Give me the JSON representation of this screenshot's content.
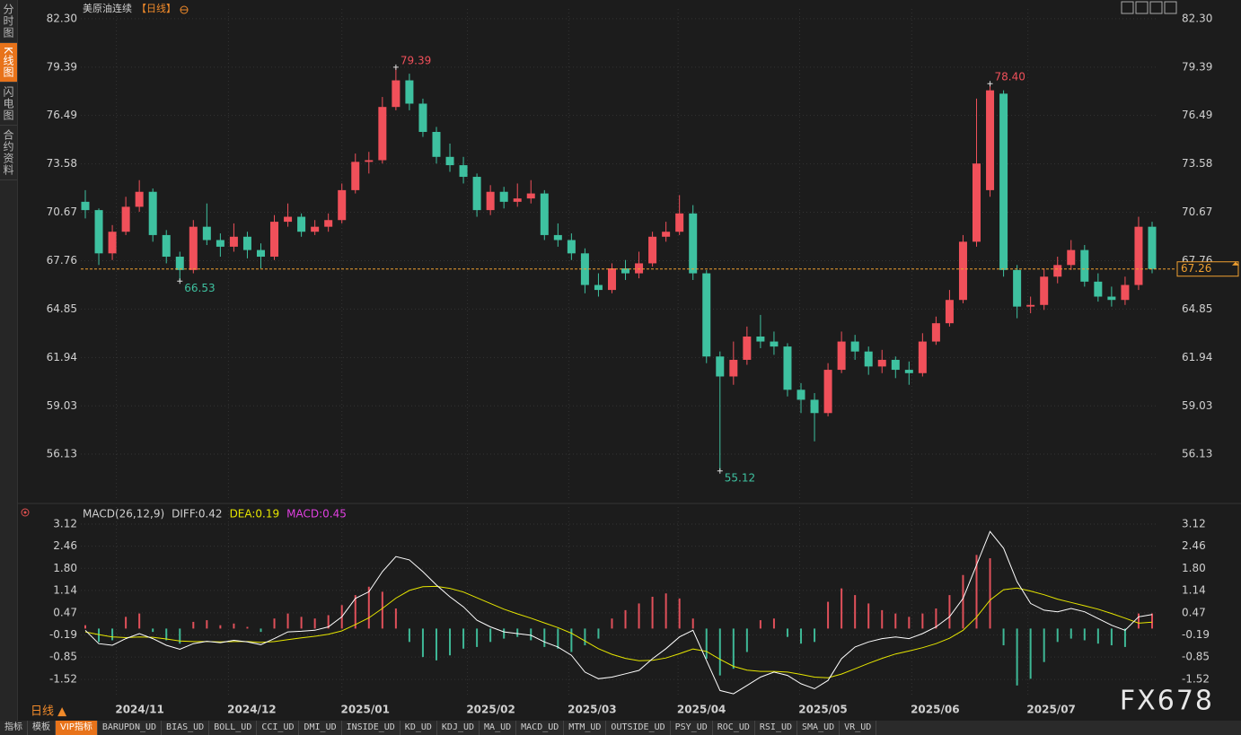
{
  "sidebar_tabs": [
    "分时图",
    "K线图",
    "闪电图",
    "合约资料"
  ],
  "period_switch": "日线 ▲",
  "toolbar": [
    "指标",
    "模板",
    "VIP指标",
    "BARUPDN_UD",
    "BIAS_UD",
    "BOLL_UD",
    "CCI_UD",
    "DMI_UD",
    "INSIDE_UD",
    "KD_UD",
    "KDJ_UD",
    "MA_UD",
    "MACD_UD",
    "MTM_UD",
    "OUTSIDE_UD",
    "PSY_UD",
    "ROC_UD",
    "RSI_UD",
    "SMA_UD",
    "VR_UD"
  ],
  "watermark": "FX678",
  "chart_data": [
    {
      "type": "candlestick",
      "title": "美原油连续",
      "period": "【日线】",
      "up_color": "#f0505a",
      "down_color": "#3ec1a0",
      "last_price_color": "#f0a030",
      "grid": true,
      "ylim": [
        53.49,
        82.89
      ],
      "yticks": [
        {
          "value": 82.3,
          "label": "82.30"
        },
        79.39,
        76.49,
        73.58,
        70.67,
        67.76,
        64.85,
        61.94,
        59.03,
        56.13
      ],
      "open": [
        71.3,
        70.8,
        68.2,
        69.5,
        71.0,
        71.9,
        69.3,
        68.0,
        67.2,
        69.8,
        69.0,
        68.6,
        69.2,
        68.4,
        68.0,
        70.1,
        70.4,
        69.5,
        69.8,
        70.2,
        72.0,
        73.7,
        73.8,
        77.0,
        78.6,
        77.2,
        75.5,
        74.0,
        73.5,
        72.8,
        70.8,
        71.9,
        71.3,
        71.5,
        71.8,
        69.3,
        69.0,
        68.2,
        66.3,
        66.0,
        67.3,
        67.0,
        67.6,
        69.2,
        69.5,
        70.6,
        67.0,
        62.0,
        60.8,
        61.8,
        63.2,
        62.9,
        62.6,
        60.0,
        59.4,
        58.6,
        61.2,
        62.9,
        62.3,
        61.4,
        61.8,
        61.2,
        61.0,
        62.9,
        64.0,
        65.4,
        68.9,
        72.0,
        77.8,
        67.2,
        65.0,
        65.1,
        66.8,
        67.5,
        68.4,
        66.5,
        65.6,
        65.4,
        66.3,
        69.8
      ],
      "high": [
        72.0,
        70.9,
        69.9,
        71.6,
        72.6,
        72.1,
        69.6,
        68.3,
        70.2,
        71.2,
        69.4,
        70.0,
        69.5,
        68.8,
        70.5,
        71.2,
        70.6,
        70.2,
        70.6,
        72.4,
        74.2,
        74.3,
        77.6,
        79.39,
        79.0,
        77.5,
        75.8,
        74.8,
        74.0,
        73.0,
        72.3,
        72.2,
        72.4,
        72.6,
        72.0,
        70.0,
        69.4,
        68.5,
        67.0,
        67.6,
        67.8,
        68.3,
        69.5,
        70.1,
        71.7,
        71.1,
        67.2,
        62.3,
        62.9,
        63.8,
        64.5,
        63.5,
        62.8,
        60.4,
        59.8,
        61.6,
        63.5,
        63.3,
        62.6,
        62.4,
        62.0,
        61.7,
        63.4,
        64.4,
        66.0,
        69.3,
        77.5,
        78.4,
        78.0,
        67.5,
        65.6,
        67.3,
        68.0,
        69.0,
        68.7,
        67.0,
        66.2,
        66.8,
        70.4,
        70.1
      ],
      "low": [
        70.3,
        67.5,
        67.8,
        69.3,
        70.7,
        68.9,
        67.6,
        66.53,
        67.0,
        68.7,
        68.0,
        68.3,
        67.9,
        67.3,
        67.8,
        69.8,
        69.2,
        69.3,
        69.5,
        70.0,
        71.8,
        73.0,
        73.6,
        76.8,
        76.8,
        75.2,
        73.6,
        73.1,
        72.4,
        70.4,
        70.5,
        70.9,
        71.0,
        71.2,
        69.0,
        68.6,
        67.8,
        65.8,
        65.6,
        65.8,
        66.6,
        66.7,
        67.4,
        68.9,
        69.3,
        66.6,
        61.6,
        55.12,
        60.3,
        61.5,
        62.5,
        62.1,
        59.6,
        58.6,
        56.9,
        58.4,
        61.0,
        61.8,
        60.9,
        61.0,
        60.7,
        60.3,
        60.8,
        62.7,
        63.8,
        65.2,
        68.6,
        71.6,
        66.8,
        64.3,
        64.6,
        64.8,
        66.4,
        67.2,
        66.2,
        65.3,
        65.0,
        65.1,
        66.0,
        67.0
      ],
      "close": [
        70.8,
        68.2,
        69.5,
        71.0,
        71.9,
        69.3,
        68.0,
        67.2,
        69.8,
        69.0,
        68.6,
        69.2,
        68.4,
        68.0,
        70.1,
        70.4,
        69.5,
        69.8,
        70.2,
        72.0,
        73.7,
        73.8,
        77.0,
        78.6,
        77.2,
        75.5,
        74.0,
        73.5,
        72.8,
        70.8,
        71.9,
        71.3,
        71.5,
        71.8,
        69.3,
        69.0,
        68.2,
        66.3,
        66.0,
        67.3,
        67.0,
        67.6,
        69.2,
        69.5,
        70.6,
        67.0,
        62.0,
        60.8,
        61.8,
        63.2,
        62.9,
        62.6,
        60.0,
        59.4,
        58.6,
        61.2,
        62.9,
        62.3,
        61.4,
        61.8,
        61.2,
        61.0,
        62.9,
        64.0,
        65.4,
        68.9,
        73.6,
        78.0,
        67.2,
        65.0,
        65.1,
        66.8,
        67.5,
        68.4,
        66.5,
        65.6,
        65.4,
        66.3,
        69.8,
        67.26
      ],
      "high_labels": [
        null,
        null,
        null,
        null,
        null,
        null,
        null,
        null,
        null,
        null,
        null,
        null,
        null,
        null,
        null,
        null,
        null,
        null,
        null,
        null,
        null,
        null,
        null,
        "79.39",
        null,
        null,
        null,
        null,
        null,
        null,
        null,
        null,
        null,
        null,
        null,
        null,
        null,
        null,
        null,
        null,
        null,
        null,
        null,
        null,
        null,
        null,
        null,
        null,
        null,
        null,
        null,
        null,
        null,
        null,
        null,
        null,
        null,
        null,
        null,
        null,
        null,
        null,
        null,
        null,
        null,
        null,
        null,
        "78.40",
        null,
        null,
        null,
        null,
        null,
        null,
        null,
        null,
        null,
        null,
        null,
        null
      ],
      "low_labels": [
        null,
        null,
        null,
        null,
        null,
        null,
        null,
        "66.53",
        null,
        null,
        null,
        null,
        null,
        null,
        null,
        null,
        null,
        null,
        null,
        null,
        null,
        null,
        null,
        null,
        null,
        null,
        null,
        null,
        null,
        null,
        null,
        null,
        null,
        null,
        null,
        null,
        null,
        null,
        null,
        null,
        null,
        null,
        null,
        null,
        null,
        null,
        null,
        "55.12",
        null,
        null,
        null,
        null,
        null,
        null,
        null,
        null,
        null,
        null,
        null,
        null,
        null,
        null,
        null,
        null,
        null,
        null,
        null,
        null,
        null,
        null,
        null,
        null,
        null,
        null,
        null,
        null,
        null,
        null,
        null,
        null
      ]
    },
    {
      "type": "macd",
      "legend": [
        "MACD(26,12,9)",
        "DIFF:0.42",
        "DEA:0.19",
        "MACD:0.45"
      ],
      "legend_colors": [
        "#d0d0d0",
        "#d0d0d0",
        "#e6e600",
        "#e040e0"
      ],
      "diff_color": "#ffffff",
      "dea_color": "#e6e600",
      "up_color": "#e0505a",
      "down_color": "#3eb896",
      "grid": true,
      "ylim": [
        -2.0,
        3.63
      ],
      "yticks": [
        3.12,
        2.46,
        {
          "value": 1.8,
          "label": "1.80"
        },
        1.14,
        0.47,
        -0.19,
        -0.85,
        -1.52
      ],
      "xticks": [
        {
          "value": 2.3,
          "label": "2024/11"
        },
        {
          "value": 10.6,
          "label": "2024/12"
        },
        {
          "value": 19.0,
          "label": "2025/01"
        },
        {
          "value": 28.3,
          "label": "2025/02"
        },
        {
          "value": 35.8,
          "label": "2025/03"
        },
        {
          "value": 43.9,
          "label": "2025/04"
        },
        {
          "value": 52.9,
          "label": "2025/05"
        },
        {
          "value": 61.2,
          "label": "2025/06"
        },
        {
          "value": 69.8,
          "label": "2025/07"
        }
      ],
      "diff": [
        -0.05,
        -0.45,
        -0.5,
        -0.3,
        -0.15,
        -0.3,
        -0.5,
        -0.62,
        -0.45,
        -0.38,
        -0.42,
        -0.35,
        -0.4,
        -0.48,
        -0.3,
        -0.1,
        -0.08,
        -0.05,
        0.05,
        0.35,
        0.9,
        1.1,
        1.7,
        2.15,
        2.05,
        1.7,
        1.3,
        0.95,
        0.65,
        0.25,
        0.05,
        -0.1,
        -0.15,
        -0.2,
        -0.4,
        -0.55,
        -0.8,
        -1.3,
        -1.5,
        -1.45,
        -1.35,
        -1.25,
        -0.9,
        -0.6,
        -0.25,
        -0.05,
        -0.95,
        -1.85,
        -1.95,
        -1.7,
        -1.45,
        -1.3,
        -1.4,
        -1.65,
        -1.8,
        -1.55,
        -0.9,
        -0.55,
        -0.4,
        -0.3,
        -0.25,
        -0.3,
        -0.15,
        0.05,
        0.35,
        0.9,
        1.9,
        2.9,
        2.4,
        1.4,
        0.75,
        0.55,
        0.5,
        0.6,
        0.5,
        0.3,
        0.1,
        -0.05,
        0.35,
        0.42
      ],
      "dea": [
        -0.1,
        -0.18,
        -0.25,
        -0.27,
        -0.25,
        -0.26,
        -0.31,
        -0.37,
        -0.39,
        -0.39,
        -0.4,
        -0.39,
        -0.39,
        -0.41,
        -0.39,
        -0.33,
        -0.28,
        -0.23,
        -0.17,
        -0.07,
        0.12,
        0.32,
        0.6,
        0.91,
        1.14,
        1.25,
        1.26,
        1.2,
        1.09,
        0.92,
        0.75,
        0.58,
        0.44,
        0.31,
        0.17,
        0.03,
        -0.14,
        -0.37,
        -0.6,
        -0.77,
        -0.89,
        -0.96,
        -0.95,
        -0.88,
        -0.75,
        -0.61,
        -0.68,
        -0.92,
        -1.13,
        -1.24,
        -1.28,
        -1.28,
        -1.3,
        -1.37,
        -1.45,
        -1.47,
        -1.36,
        -1.2,
        -1.04,
        -0.89,
        -0.76,
        -0.67,
        -0.57,
        -0.45,
        -0.29,
        -0.05,
        0.34,
        0.85,
        1.16,
        1.21,
        1.12,
        1.01,
        0.88,
        0.78,
        0.68,
        0.58,
        0.45,
        0.31,
        0.16,
        0.19
      ],
      "hist": [
        0.1,
        -0.4,
        -0.35,
        0.35,
        0.45,
        -0.1,
        -0.35,
        -0.45,
        0.2,
        0.25,
        0.1,
        0.15,
        0.05,
        -0.1,
        0.3,
        0.45,
        0.35,
        0.3,
        0.4,
        0.7,
        1.0,
        1.25,
        1.1,
        0.6,
        -0.4,
        -0.85,
        -0.95,
        -0.8,
        -0.6,
        -0.55,
        -0.4,
        -0.3,
        -0.25,
        -0.35,
        -0.55,
        -0.6,
        -0.7,
        -0.5,
        -0.3,
        0.3,
        0.55,
        0.75,
        0.95,
        1.05,
        0.9,
        0.3,
        -0.9,
        -1.4,
        -1.2,
        -0.7,
        0.25,
        0.3,
        -0.25,
        -0.45,
        -0.4,
        0.8,
        1.2,
        1.0,
        0.75,
        0.55,
        0.45,
        0.35,
        0.45,
        0.6,
        1.0,
        1.6,
        2.2,
        2.1,
        -0.5,
        -1.7,
        -1.5,
        -1.0,
        -0.4,
        -0.3,
        -0.35,
        -0.45,
        -0.5,
        -0.55,
        0.45,
        0.45
      ]
    }
  ]
}
